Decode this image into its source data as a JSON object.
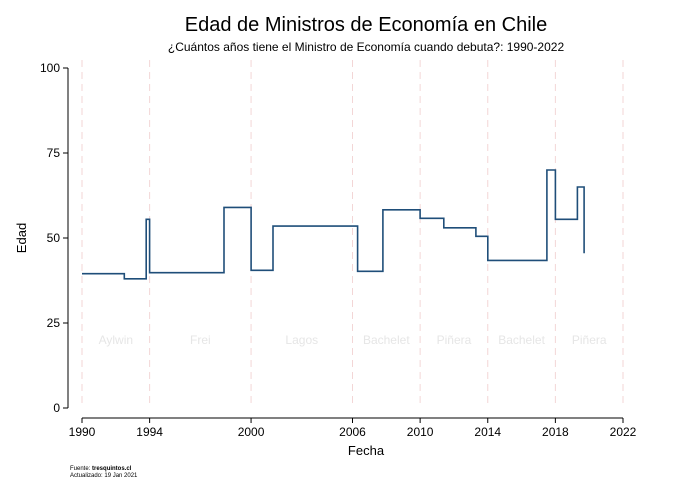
{
  "chart_data": {
    "type": "line",
    "step": true,
    "title": "Edad de Ministros de Economía en Chile",
    "subtitle": "¿Cuántos años tiene el Ministro de Economía cuando debuta?: 1990-2022",
    "xlabel": "Fecha",
    "ylabel": "Edad",
    "xlim": [
      1990,
      2022
    ],
    "ylim": [
      0,
      100
    ],
    "x_ticks": [
      1990,
      1994,
      2000,
      2006,
      2010,
      2014,
      2018,
      2022
    ],
    "y_ticks": [
      0,
      25,
      50,
      75,
      100
    ],
    "x_tick_labels": [
      "1990",
      "1994",
      "2000",
      "2006",
      "2010",
      "2014",
      "2018",
      "2022"
    ],
    "y_tick_labels": [
      "0",
      "25",
      "50",
      "75",
      "100"
    ],
    "vertical_reference_lines": [
      1990,
      1994,
      2000,
      2006,
      2010,
      2014,
      2018,
      2022
    ],
    "reference_line_color": "#f3d6d6",
    "line_color": "#1f4e79",
    "regions": [
      {
        "label": "Aylwin",
        "x": 1992.0
      },
      {
        "label": "Frei",
        "x": 1997.0
      },
      {
        "label": "Lagos",
        "x": 2003.0
      },
      {
        "label": "Bachelet",
        "x": 2008.0
      },
      {
        "label": "Piñera",
        "x": 2012.0
      },
      {
        "label": "Bachelet",
        "x": 2016.0
      },
      {
        "label": "Piñera",
        "x": 2020.0
      }
    ],
    "region_label_y": 20,
    "series": [
      {
        "x": [
          1990.0,
          1992.5,
          1992.5,
          1993.8,
          1993.8,
          1994.0,
          1994.0,
          1998.4,
          1998.4,
          2000.0,
          2000.0,
          2001.3,
          2001.3,
          2006.3,
          2006.3,
          2007.8,
          2007.8,
          2010.0,
          2010.0,
          2011.4,
          2011.4,
          2013.3,
          2013.3,
          2014.0,
          2014.0,
          2017.5,
          2017.5,
          2018.0,
          2018.0,
          2019.3,
          2019.3,
          2019.7,
          2019.7
        ],
        "y": [
          39.5,
          39.5,
          38.0,
          38.0,
          55.5,
          55.5,
          39.8,
          39.8,
          59.0,
          59.0,
          40.5,
          40.5,
          53.5,
          53.5,
          40.2,
          40.2,
          58.3,
          58.3,
          55.8,
          55.8,
          53.0,
          53.0,
          50.5,
          50.5,
          43.4,
          43.4,
          70.0,
          70.0,
          55.5,
          55.5,
          65.0,
          65.0,
          45.5
        ]
      }
    ]
  },
  "footer": {
    "source_prefix": "Fuente: ",
    "source_name": "tresquintos.cl",
    "updated": "Actualizado: 19 Jan 2021"
  }
}
